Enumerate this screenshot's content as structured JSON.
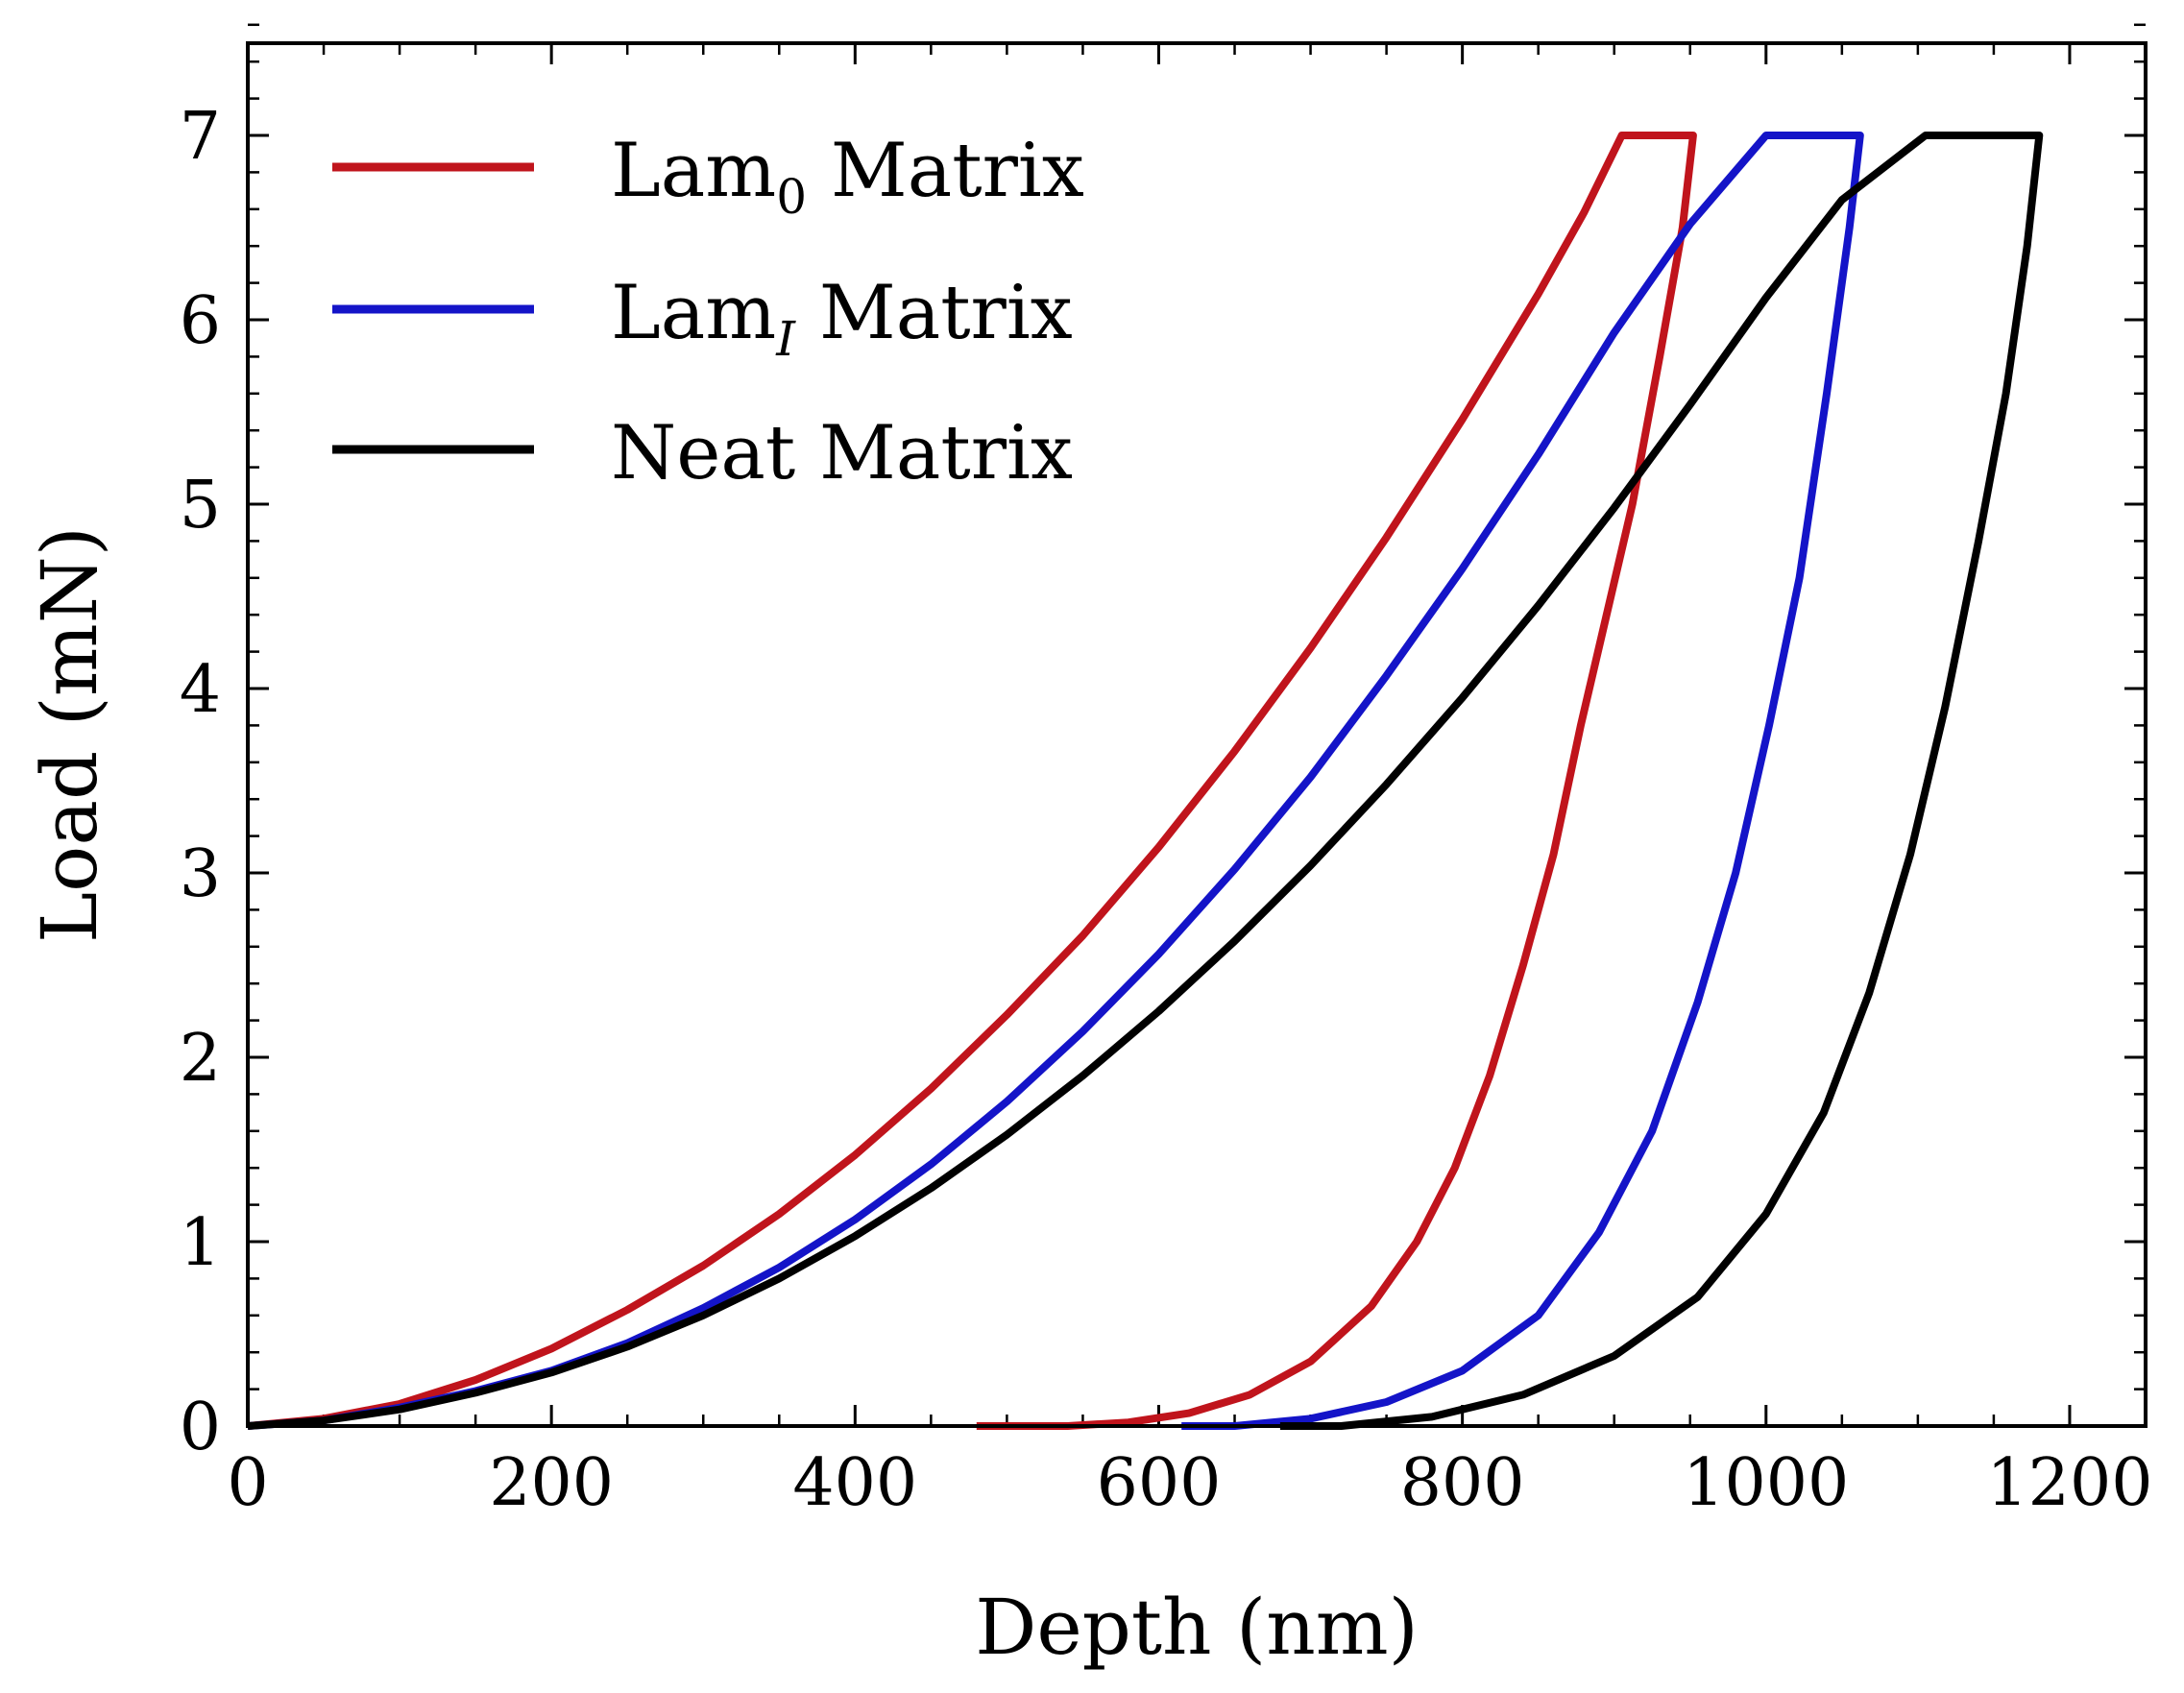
{
  "chart_data": {
    "type": "line",
    "title": "",
    "xlabel": "Depth (nm)",
    "ylabel": "Load (mN)",
    "xlim": [
      0,
      1250
    ],
    "ylim": [
      0,
      7.5
    ],
    "xticks": [
      0,
      200,
      400,
      600,
      800,
      1000,
      1200
    ],
    "yticks": [
      0,
      1,
      2,
      3,
      4,
      5,
      6,
      7
    ],
    "xtick_labels": [
      "0",
      "200",
      "400",
      "600",
      "800",
      "1000",
      "1200"
    ],
    "ytick_labels": [
      "0",
      "1",
      "2",
      "3",
      "4",
      "5",
      "6",
      "7"
    ],
    "grid": false,
    "legend_position": "top-left",
    "series": [
      {
        "name": "Lam0 Matrix",
        "legend_main": "Lam",
        "legend_sub": "0",
        "legend_suffix": " Matrix",
        "color": "#c0141c",
        "loading": [
          [
            0,
            0
          ],
          [
            50,
            0.04
          ],
          [
            100,
            0.12
          ],
          [
            150,
            0.25
          ],
          [
            200,
            0.42
          ],
          [
            250,
            0.63
          ],
          [
            300,
            0.87
          ],
          [
            350,
            1.15
          ],
          [
            400,
            1.47
          ],
          [
            450,
            1.83
          ],
          [
            500,
            2.23
          ],
          [
            550,
            2.66
          ],
          [
            600,
            3.14
          ],
          [
            650,
            3.66
          ],
          [
            700,
            4.22
          ],
          [
            750,
            4.82
          ],
          [
            800,
            5.46
          ],
          [
            850,
            6.14
          ],
          [
            880,
            6.58
          ],
          [
            905,
            7.0
          ]
        ],
        "hold": [
          [
            905,
            7.0
          ],
          [
            952,
            7.0
          ]
        ],
        "unloading": [
          [
            952,
            7.0
          ],
          [
            945,
            6.5
          ],
          [
            930,
            5.8
          ],
          [
            912,
            5.0
          ],
          [
            895,
            4.4
          ],
          [
            878,
            3.8
          ],
          [
            860,
            3.1
          ],
          [
            840,
            2.5
          ],
          [
            818,
            1.9
          ],
          [
            795,
            1.4
          ],
          [
            770,
            1.0
          ],
          [
            740,
            0.65
          ],
          [
            700,
            0.35
          ],
          [
            660,
            0.17
          ],
          [
            620,
            0.07
          ],
          [
            580,
            0.02
          ],
          [
            540,
            0.0
          ],
          [
            480,
            0.0
          ]
        ]
      },
      {
        "name": "LamI Matrix",
        "legend_main": "Lam",
        "legend_sub": "I",
        "legend_suffix": " Matrix",
        "color": "#1414c8",
        "loading": [
          [
            0,
            0
          ],
          [
            50,
            0.03
          ],
          [
            100,
            0.1
          ],
          [
            150,
            0.19
          ],
          [
            200,
            0.3
          ],
          [
            250,
            0.45
          ],
          [
            300,
            0.64
          ],
          [
            350,
            0.86
          ],
          [
            400,
            1.12
          ],
          [
            450,
            1.42
          ],
          [
            500,
            1.76
          ],
          [
            550,
            2.14
          ],
          [
            600,
            2.56
          ],
          [
            650,
            3.02
          ],
          [
            700,
            3.52
          ],
          [
            750,
            4.07
          ],
          [
            800,
            4.65
          ],
          [
            850,
            5.27
          ],
          [
            900,
            5.93
          ],
          [
            950,
            6.52
          ],
          [
            1000,
            7.0
          ]
        ],
        "hold": [
          [
            1000,
            7.0
          ],
          [
            1062,
            7.0
          ]
        ],
        "unloading": [
          [
            1062,
            7.0
          ],
          [
            1055,
            6.5
          ],
          [
            1040,
            5.6
          ],
          [
            1022,
            4.6
          ],
          [
            1002,
            3.8
          ],
          [
            980,
            3.0
          ],
          [
            955,
            2.3
          ],
          [
            925,
            1.6
          ],
          [
            890,
            1.05
          ],
          [
            850,
            0.6
          ],
          [
            800,
            0.3
          ],
          [
            750,
            0.13
          ],
          [
            700,
            0.04
          ],
          [
            650,
            0.0
          ],
          [
            615,
            0.0
          ]
        ]
      },
      {
        "name": "Neat Matrix",
        "legend_main": "Neat",
        "legend_sub": "",
        "legend_suffix": " Matrix",
        "color": "#000000",
        "loading": [
          [
            0,
            0
          ],
          [
            50,
            0.03
          ],
          [
            100,
            0.09
          ],
          [
            150,
            0.18
          ],
          [
            200,
            0.29
          ],
          [
            250,
            0.43
          ],
          [
            300,
            0.6
          ],
          [
            350,
            0.8
          ],
          [
            400,
            1.03
          ],
          [
            450,
            1.29
          ],
          [
            500,
            1.58
          ],
          [
            550,
            1.9
          ],
          [
            600,
            2.25
          ],
          [
            650,
            2.63
          ],
          [
            700,
            3.04
          ],
          [
            750,
            3.48
          ],
          [
            800,
            3.95
          ],
          [
            850,
            4.45
          ],
          [
            900,
            4.98
          ],
          [
            950,
            5.54
          ],
          [
            1000,
            6.12
          ],
          [
            1050,
            6.65
          ],
          [
            1105,
            7.0
          ]
        ],
        "hold": [
          [
            1105,
            7.0
          ],
          [
            1180,
            7.0
          ]
        ],
        "unloading": [
          [
            1180,
            7.0
          ],
          [
            1172,
            6.4
          ],
          [
            1158,
            5.6
          ],
          [
            1140,
            4.8
          ],
          [
            1118,
            3.9
          ],
          [
            1095,
            3.1
          ],
          [
            1068,
            2.35
          ],
          [
            1038,
            1.7
          ],
          [
            1000,
            1.15
          ],
          [
            955,
            0.7
          ],
          [
            900,
            0.38
          ],
          [
            840,
            0.17
          ],
          [
            780,
            0.05
          ],
          [
            720,
            0.0
          ],
          [
            680,
            0.0
          ]
        ]
      }
    ]
  }
}
